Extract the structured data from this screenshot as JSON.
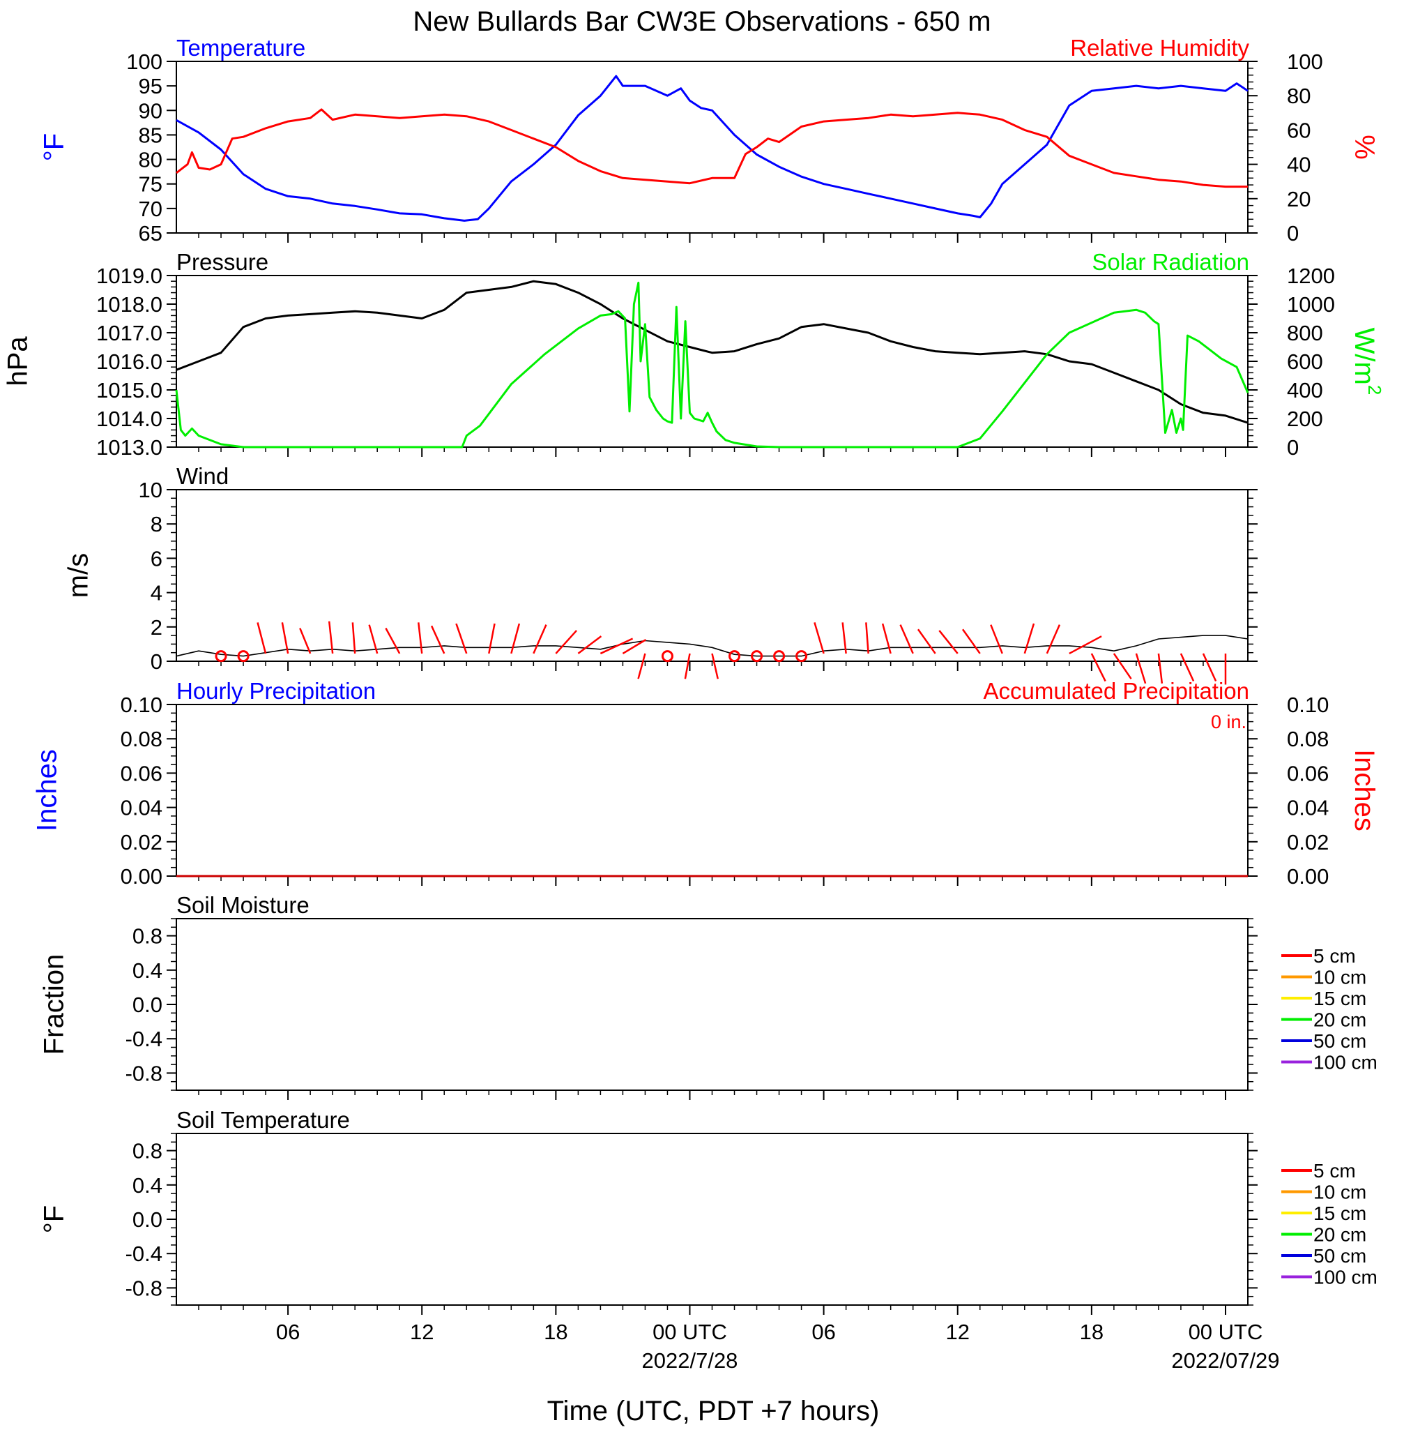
{
  "title": "New Bullards Bar CW3E Observations - 650 m",
  "x_axis": {
    "label": "Time (UTC, PDT +7 hours)",
    "range_hours": [
      0,
      48
    ],
    "ticks": [
      {
        "h": 5,
        "label": "06"
      },
      {
        "h": 11,
        "label": "12"
      },
      {
        "h": 17,
        "label": "18"
      },
      {
        "h": 23,
        "label": "00 UTC",
        "sub": "2022/7/28"
      },
      {
        "h": 29,
        "label": "06"
      },
      {
        "h": 35,
        "label": "12"
      },
      {
        "h": 41,
        "label": "18"
      },
      {
        "h": 47,
        "label": "00 UTC",
        "sub": "2022/07/29"
      }
    ]
  },
  "colors": {
    "temperature": "#0000ff",
    "humidity": "#ff0000",
    "pressure": "#000000",
    "solar": "#00ee00",
    "wind": "#000000",
    "barbs": "#ff0000",
    "precip": "#cc0000"
  },
  "chart_data": [
    {
      "type": "line",
      "panel": "temp-rh",
      "left_title": "Temperature",
      "right_title": "Relative Humidity",
      "ylabel_left": "°F",
      "ylabel_right": "%",
      "ylim_left": [
        65,
        100
      ],
      "ylim_right": [
        0,
        100
      ],
      "left_ticks": [
        "65",
        "70",
        "75",
        "80",
        "85",
        "90",
        "95",
        "100"
      ],
      "right_ticks": [
        "0",
        "20",
        "40",
        "60",
        "80",
        "100"
      ],
      "series": [
        {
          "name": "Temperature",
          "axis": "left",
          "x": [
            0,
            1,
            2,
            3,
            4,
            5,
            6,
            7,
            8,
            9,
            10,
            11,
            12,
            12.9,
            13.5,
            14,
            15,
            16,
            17,
            18,
            19,
            19.7,
            20,
            21,
            22,
            22.6,
            23,
            23.5,
            24,
            25,
            26,
            27,
            28,
            29,
            30,
            31,
            32,
            33,
            34,
            35,
            35.7,
            36,
            36.5,
            37,
            38,
            39,
            40,
            41,
            42,
            43,
            44,
            45,
            46,
            47,
            47.5,
            48
          ],
          "y": [
            88,
            85.5,
            82,
            77,
            74,
            72.5,
            72,
            71,
            70.5,
            69.8,
            69,
            68.8,
            68,
            67.5,
            67.8,
            70,
            75.5,
            79,
            83,
            89,
            93,
            97,
            95,
            95,
            93,
            94.5,
            92,
            90.5,
            90,
            85,
            81,
            78.5,
            76.5,
            75,
            74,
            73,
            72,
            71,
            70,
            69,
            68.5,
            68.2,
            71,
            75,
            79,
            83,
            91,
            94,
            94.5,
            95,
            94.5,
            95,
            94.5,
            94,
            95.5,
            94
          ]
        },
        {
          "name": "Relative Humidity",
          "axis": "right",
          "x": [
            0,
            0.5,
            0.7,
            1,
            1.5,
            2,
            2.5,
            3,
            4,
            5,
            6,
            6.5,
            7,
            8,
            9,
            10,
            11,
            12,
            13,
            14,
            15,
            16,
            17,
            18,
            19,
            20,
            21,
            22,
            23,
            24,
            25,
            25.5,
            26,
            26.5,
            27,
            28,
            29,
            30,
            31,
            32,
            33,
            34,
            35,
            36,
            37,
            38,
            39,
            40,
            41,
            42,
            43,
            44,
            45,
            46,
            47,
            48
          ],
          "y": [
            35,
            40,
            47,
            38,
            37,
            40,
            55,
            56,
            61,
            65,
            67,
            72,
            66,
            69,
            68,
            67,
            68,
            69,
            68,
            65,
            60,
            55,
            50,
            42,
            36,
            32,
            31,
            30,
            29,
            32,
            32,
            46,
            50,
            55,
            53,
            62,
            65,
            66,
            67,
            69,
            68,
            69,
            70,
            69,
            66,
            60,
            56,
            45,
            40,
            35,
            33,
            31,
            30,
            28,
            27,
            27
          ]
        }
      ]
    },
    {
      "type": "line",
      "panel": "pressure-solar",
      "left_title": "Pressure",
      "right_title": "Solar Radiation",
      "ylabel_left": "hPa",
      "ylabel_right": "W/m",
      "ylabel_right_sup": "2",
      "ylim_left": [
        1013,
        1019
      ],
      "ylim_right": [
        0,
        1200
      ],
      "left_ticks": [
        "1013.0",
        "1014.0",
        "1015.0",
        "1016.0",
        "1017.0",
        "1018.0",
        "1019.0"
      ],
      "right_ticks": [
        "0",
        "200",
        "400",
        "600",
        "800",
        "1000",
        "1200"
      ],
      "series": [
        {
          "name": "Pressure",
          "axis": "left",
          "x": [
            0,
            1,
            2,
            3,
            4,
            5,
            6,
            7,
            8,
            9,
            10,
            11,
            12,
            13,
            14,
            15,
            16,
            17,
            18,
            19,
            20,
            21,
            22,
            23,
            24,
            25,
            26,
            27,
            28,
            29,
            30,
            31,
            32,
            33,
            34,
            35,
            36,
            37,
            38,
            39,
            40,
            41,
            42,
            43,
            44,
            45,
            46,
            47,
            48
          ],
          "y": [
            1015.7,
            1016.0,
            1016.3,
            1017.2,
            1017.5,
            1017.6,
            1017.65,
            1017.7,
            1017.75,
            1017.7,
            1017.6,
            1017.5,
            1017.8,
            1018.4,
            1018.5,
            1018.6,
            1018.8,
            1018.7,
            1018.4,
            1018.0,
            1017.5,
            1017.1,
            1016.7,
            1016.5,
            1016.3,
            1016.35,
            1016.6,
            1016.8,
            1017.2,
            1017.3,
            1017.15,
            1017.0,
            1016.7,
            1016.5,
            1016.35,
            1016.3,
            1016.25,
            1016.3,
            1016.35,
            1016.25,
            1016.0,
            1015.9,
            1015.6,
            1015.3,
            1015.0,
            1014.5,
            1014.2,
            1014.1,
            1013.85
          ]
        },
        {
          "name": "Solar Radiation",
          "axis": "right",
          "x": [
            0,
            0.2,
            0.4,
            0.7,
            1,
            2,
            3,
            12,
            12.8,
            13,
            13.6,
            15,
            16.5,
            18,
            19,
            19.5,
            19.8,
            20.1,
            20.3,
            20.5,
            20.7,
            20.8,
            21.0,
            21.2,
            21.5,
            21.8,
            22.0,
            22.2,
            22.4,
            22.6,
            22.8,
            23.0,
            23.2,
            23.6,
            23.8,
            24.0,
            24.2,
            24.6,
            25,
            26,
            27,
            35,
            36,
            37,
            38,
            39,
            40,
            41,
            42,
            43,
            43.4,
            43.8,
            44.0,
            44.3,
            44.6,
            44.8,
            45.0,
            45.1,
            45.3,
            45.8,
            46.3,
            46.8,
            47.5,
            48
          ],
          "y": [
            400,
            120,
            80,
            130,
            80,
            20,
            0,
            0,
            0,
            80,
            150,
            440,
            650,
            830,
            920,
            930,
            950,
            900,
            250,
            1000,
            1150,
            600,
            860,
            350,
            260,
            200,
            180,
            170,
            980,
            200,
            880,
            240,
            200,
            180,
            240,
            170,
            110,
            50,
            30,
            5,
            0,
            0,
            60,
            250,
            450,
            650,
            800,
            870,
            940,
            960,
            940,
            880,
            860,
            100,
            260,
            100,
            200,
            120,
            780,
            740,
            680,
            620,
            560,
            380
          ]
        }
      ]
    },
    {
      "type": "line",
      "panel": "wind",
      "left_title": "Wind",
      "ylabel_left": "m/s",
      "ylim_left": [
        0,
        10
      ],
      "left_ticks": [
        "0",
        "2",
        "4",
        "6",
        "8",
        "10"
      ],
      "series": [
        {
          "name": "Wind",
          "axis": "left",
          "x": [
            0,
            1,
            2,
            3,
            4,
            5,
            6,
            7,
            8,
            9,
            10,
            11,
            12,
            13,
            14,
            15,
            16,
            17,
            18,
            19,
            20,
            21,
            22,
            23,
            24,
            25,
            26,
            27,
            28,
            29,
            30,
            31,
            32,
            33,
            34,
            35,
            36,
            37,
            38,
            39,
            40,
            41,
            42,
            43,
            44,
            45,
            46,
            47,
            48
          ],
          "y": [
            0.3,
            0.6,
            0.4,
            0.3,
            0.5,
            0.7,
            0.6,
            0.7,
            0.6,
            0.7,
            0.8,
            0.8,
            0.9,
            0.8,
            0.8,
            0.8,
            0.9,
            0.9,
            0.8,
            0.7,
            1.0,
            1.2,
            1.1,
            1.0,
            0.8,
            0.4,
            0.3,
            0.3,
            0.3,
            0.6,
            0.7,
            0.6,
            0.8,
            0.8,
            0.8,
            0.8,
            0.8,
            0.9,
            0.8,
            0.9,
            0.9,
            0.8,
            0.6,
            0.9,
            1.3,
            1.4,
            1.5,
            1.5,
            1.3
          ]
        }
      ],
      "barbs": [
        {
          "h": 2,
          "u": 0,
          "v": 0
        },
        {
          "h": 3,
          "u": 0,
          "v": 0
        },
        {
          "h": 4,
          "u": -0.35,
          "v": 1.35
        },
        {
          "h": 5,
          "u": -0.25,
          "v": 1.35
        },
        {
          "h": 6,
          "u": -0.45,
          "v": 1.1
        },
        {
          "h": 7,
          "u": -0.15,
          "v": 1.4
        },
        {
          "h": 8,
          "u": -0.1,
          "v": 1.35
        },
        {
          "h": 9,
          "u": -0.35,
          "v": 1.25
        },
        {
          "h": 10,
          "u": -0.6,
          "v": 1.1
        },
        {
          "h": 11,
          "u": -0.15,
          "v": 1.35
        },
        {
          "h": 12,
          "u": -0.55,
          "v": 1.2
        },
        {
          "h": 13,
          "u": -0.45,
          "v": 1.3
        },
        {
          "h": 14,
          "u": 0.25,
          "v": 1.3
        },
        {
          "h": 15,
          "u": 0.35,
          "v": 1.3
        },
        {
          "h": 16,
          "u": 0.55,
          "v": 1.25
        },
        {
          "h": 17,
          "u": 0.9,
          "v": 1.0
        },
        {
          "h": 18,
          "u": 1.0,
          "v": 0.75
        },
        {
          "h": 19,
          "u": 1.4,
          "v": 0.65
        },
        {
          "h": 20,
          "u": 1.0,
          "v": 0.6
        },
        {
          "h": 21,
          "u": -0.3,
          "v": -1.1
        },
        {
          "h": 22,
          "u": 0,
          "v": 0
        },
        {
          "h": 23,
          "u": -0.2,
          "v": -1.1
        },
        {
          "h": 24,
          "u": 0.25,
          "v": -1.1
        },
        {
          "h": 25,
          "u": 0,
          "v": 0
        },
        {
          "h": 26,
          "u": 0,
          "v": 0
        },
        {
          "h": 27,
          "u": 0,
          "v": 0
        },
        {
          "h": 28,
          "u": 0,
          "v": 0
        },
        {
          "h": 29,
          "u": -0.4,
          "v": 1.35
        },
        {
          "h": 30,
          "u": -0.15,
          "v": 1.35
        },
        {
          "h": 31,
          "u": -0.1,
          "v": 1.35
        },
        {
          "h": 32,
          "u": -0.35,
          "v": 1.3
        },
        {
          "h": 33,
          "u": -0.55,
          "v": 1.25
        },
        {
          "h": 34,
          "u": -0.75,
          "v": 1.05
        },
        {
          "h": 35,
          "u": -0.8,
          "v": 1.0
        },
        {
          "h": 36,
          "u": -0.75,
          "v": 1.05
        },
        {
          "h": 37,
          "u": -0.5,
          "v": 1.25
        },
        {
          "h": 38,
          "u": 0.4,
          "v": 1.3
        },
        {
          "h": 39,
          "u": 0.55,
          "v": 1.25
        },
        {
          "h": 40,
          "u": 1.4,
          "v": 0.75
        },
        {
          "h": 41,
          "u": 0.6,
          "v": -1.2
        },
        {
          "h": 42,
          "u": 0.75,
          "v": -1.1
        },
        {
          "h": 43,
          "u": 0.4,
          "v": -1.3
        },
        {
          "h": 44,
          "u": 0.15,
          "v": -1.3
        },
        {
          "h": 45,
          "u": 0.55,
          "v": -1.2
        },
        {
          "h": 46,
          "u": 0.55,
          "v": -1.2
        },
        {
          "h": 47,
          "u": 0,
          "v": -1.35
        }
      ]
    },
    {
      "type": "line",
      "panel": "precipitation",
      "left_title": "Hourly Precipitation",
      "right_title": "Accumulated Precipitation",
      "right_note": "0 in.",
      "ylabel_left": "Inches",
      "ylabel_right": "Inches",
      "ylim_left": [
        0,
        0.1
      ],
      "ylim_right": [
        0,
        0.1
      ],
      "left_ticks": [
        "0.00",
        "0.02",
        "0.04",
        "0.06",
        "0.08",
        "0.10"
      ],
      "right_ticks": [
        "0.00",
        "0.02",
        "0.04",
        "0.06",
        "0.08",
        "0.10"
      ],
      "series": [
        {
          "name": "Hourly Precipitation",
          "axis": "left",
          "x": [
            0,
            48
          ],
          "y": [
            0,
            0
          ]
        },
        {
          "name": "Accumulated Precipitation",
          "axis": "right",
          "x": [
            0,
            48
          ],
          "y": [
            0,
            0
          ]
        }
      ]
    },
    {
      "type": "line",
      "panel": "soil-moisture",
      "left_title": "Soil Moisture",
      "ylabel_left": "Fraction",
      "ylim_left": [
        -1,
        1
      ],
      "left_ticks": [
        "-0.8",
        "-0.4",
        "0.0",
        "0.4",
        "0.8"
      ],
      "legend": [
        {
          "label": "5 cm",
          "color": "#ff0000"
        },
        {
          "label": "10 cm",
          "color": "#ff9900"
        },
        {
          "label": "15 cm",
          "color": "#ffee00"
        },
        {
          "label": "20 cm",
          "color": "#00ee00"
        },
        {
          "label": "50 cm",
          "color": "#0000dd"
        },
        {
          "label": "100 cm",
          "color": "#9922dd"
        }
      ]
    },
    {
      "type": "line",
      "panel": "soil-temperature",
      "left_title": "Soil Temperature",
      "ylabel_left": "°F",
      "ylim_left": [
        -1,
        1
      ],
      "left_ticks": [
        "-0.8",
        "-0.4",
        "0.0",
        "0.4",
        "0.8"
      ],
      "legend": [
        {
          "label": "5 cm",
          "color": "#ff0000"
        },
        {
          "label": "10 cm",
          "color": "#ff9900"
        },
        {
          "label": "15 cm",
          "color": "#ffee00"
        },
        {
          "label": "20 cm",
          "color": "#00ee00"
        },
        {
          "label": "50 cm",
          "color": "#0000dd"
        },
        {
          "label": "100 cm",
          "color": "#9922dd"
        }
      ]
    }
  ]
}
